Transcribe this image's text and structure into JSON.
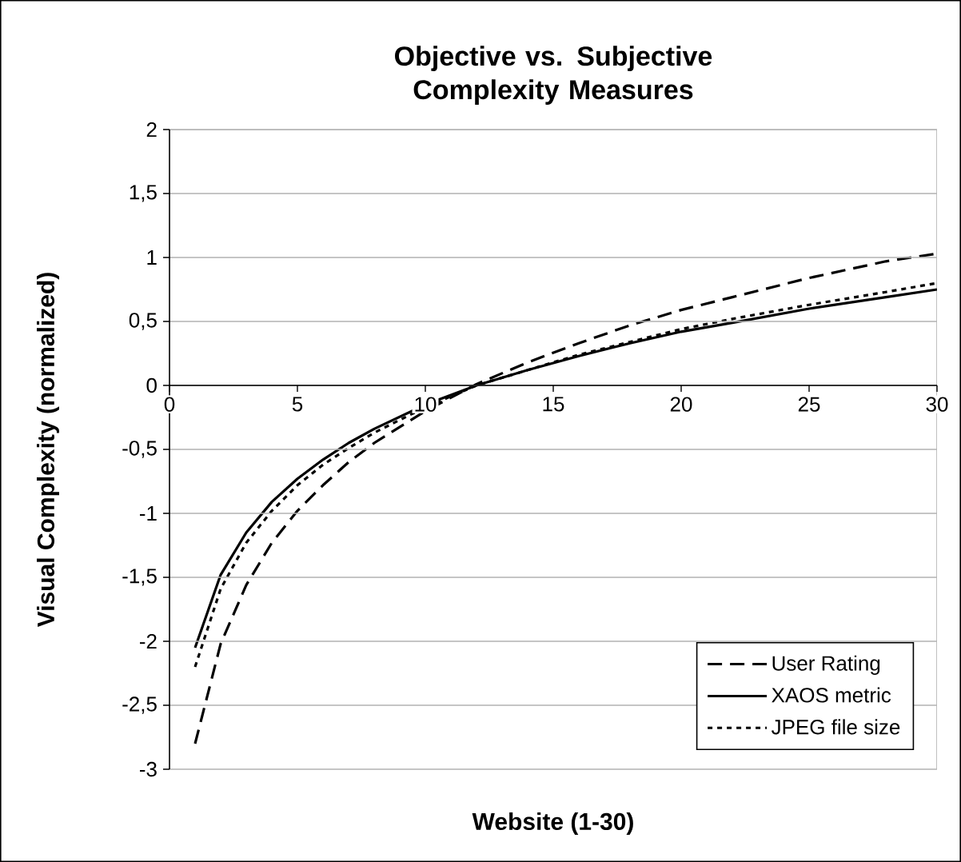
{
  "chart_data": {
    "type": "line",
    "title": "Objective vs. Subjective Complexity Measures",
    "xlabel": "Website (1-30)",
    "ylabel": "Visual Complexity (normalized)",
    "x": [
      1,
      2,
      3,
      4,
      5,
      6,
      7,
      8,
      10,
      12,
      14,
      16,
      18,
      20,
      22,
      25,
      28,
      30
    ],
    "series": [
      {
        "name": "User Rating",
        "color": "#000000",
        "line_style": "dashed",
        "values": [
          -2.8,
          -2.02,
          -1.56,
          -1.23,
          -0.98,
          -0.78,
          -0.6,
          -0.45,
          -0.2,
          0.01,
          0.18,
          0.33,
          0.47,
          0.59,
          0.69,
          0.84,
          0.97,
          1.03
        ]
      },
      {
        "name": "XAOS metric",
        "color": "#000000",
        "line_style": "solid",
        "values": [
          -2.05,
          -1.48,
          -1.15,
          -0.91,
          -0.73,
          -0.58,
          -0.45,
          -0.34,
          -0.15,
          0.0,
          0.12,
          0.23,
          0.33,
          0.42,
          0.49,
          0.6,
          0.69,
          0.75
        ]
      },
      {
        "name": "JPEG file size",
        "color": "#000000",
        "line_style": "dotted",
        "values": [
          -2.2,
          -1.59,
          -1.23,
          -0.98,
          -0.78,
          -0.62,
          -0.49,
          -0.37,
          -0.17,
          0.0,
          0.12,
          0.24,
          0.34,
          0.44,
          0.52,
          0.63,
          0.73,
          0.8
        ]
      }
    ],
    "xlim": [
      0,
      30
    ],
    "ylim": [
      -3,
      2
    ],
    "xticks": [
      0,
      5,
      10,
      15,
      20,
      25,
      30
    ],
    "yticks": [
      {
        "value": -3,
        "label": "-3"
      },
      {
        "value": -2.5,
        "label": "-2,5"
      },
      {
        "value": -2,
        "label": "-2"
      },
      {
        "value": -1.5,
        "label": "-1,5"
      },
      {
        "value": -1,
        "label": "-1"
      },
      {
        "value": -0.5,
        "label": "-0,5"
      },
      {
        "value": 0,
        "label": "0"
      },
      {
        "value": 0.5,
        "label": "0,5"
      },
      {
        "value": 1,
        "label": "1"
      },
      {
        "value": 1.5,
        "label": "1,5"
      },
      {
        "value": 2,
        "label": "2"
      }
    ],
    "grid": "y",
    "legend": "bottom right",
    "marker": "none"
  }
}
